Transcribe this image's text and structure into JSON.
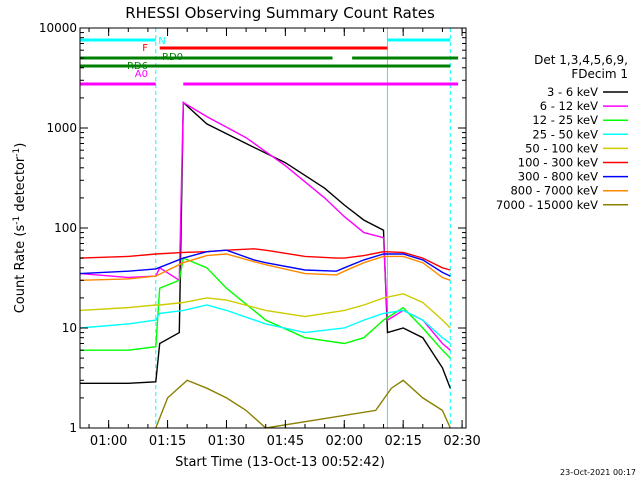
{
  "chart_data": {
    "type": "line",
    "title": "RHESSI Observing Summary Count Rates",
    "xlabel": "Start Time (13-Oct-13 00:52:42)",
    "ylabel": "Count Rate (s⁻¹ detector⁻¹)",
    "ylabel_main": "Count Rate (s",
    "ylabel_sup1": "-1",
    "ylabel_mid": " detector",
    "ylabel_sup2": "-1",
    "ylabel_end": ")",
    "y_scale": "log",
    "ylim": [
      1,
      10000
    ],
    "xlim": [
      "00:52:42",
      "02:31:00"
    ],
    "x_ticks": [
      "01:00",
      "01:15",
      "01:30",
      "01:45",
      "02:00",
      "02:15",
      "02:30"
    ],
    "y_ticks": [
      "1",
      "10",
      "100",
      "1000",
      "10000"
    ],
    "legend_header": [
      "Det 1,3,4,5,6,9,",
      "FDecim 1"
    ],
    "legend_position": "right",
    "timestamp": "23-Oct-2021 00:17",
    "series": [
      {
        "name": "3 - 6 keV",
        "color": "#000000",
        "points": [
          [
            "00:52:42",
            2.8
          ],
          [
            "01:05",
            2.8
          ],
          [
            "01:12",
            2.9
          ],
          [
            "01:13",
            7
          ],
          [
            "01:18",
            9
          ],
          [
            "01:19",
            1800
          ],
          [
            "01:25",
            1100
          ],
          [
            "01:35",
            700
          ],
          [
            "01:45",
            450
          ],
          [
            "01:55",
            250
          ],
          [
            "02:00",
            170
          ],
          [
            "02:05",
            120
          ],
          [
            "02:10",
            95
          ],
          [
            "02:11",
            9
          ],
          [
            "02:15",
            10
          ],
          [
            "02:20",
            8
          ],
          [
            "02:25",
            4
          ],
          [
            "02:27",
            2.5
          ]
        ]
      },
      {
        "name": "6 - 12 keV",
        "color": "#ff00ff",
        "points": [
          [
            "00:52:42",
            35
          ],
          [
            "01:05",
            32
          ],
          [
            "01:12",
            33
          ],
          [
            "01:13",
            40
          ],
          [
            "01:18",
            30
          ],
          [
            "01:19",
            1800
          ],
          [
            "01:25",
            1300
          ],
          [
            "01:35",
            800
          ],
          [
            "01:45",
            420
          ],
          [
            "01:55",
            200
          ],
          [
            "02:00",
            130
          ],
          [
            "02:05",
            90
          ],
          [
            "02:10",
            80
          ],
          [
            "02:11",
            12
          ],
          [
            "02:15",
            15
          ],
          [
            "02:20",
            12
          ],
          [
            "02:25",
            7
          ],
          [
            "02:27",
            6
          ]
        ]
      },
      {
        "name": "12 - 25 keV",
        "color": "#00ff00",
        "points": [
          [
            "00:52:42",
            6
          ],
          [
            "01:05",
            6
          ],
          [
            "01:12",
            6.5
          ],
          [
            "01:13",
            25
          ],
          [
            "01:18",
            30
          ],
          [
            "01:19",
            50
          ],
          [
            "01:25",
            40
          ],
          [
            "01:30",
            25
          ],
          [
            "01:40",
            12
          ],
          [
            "01:50",
            8
          ],
          [
            "02:00",
            7
          ],
          [
            "02:05",
            8
          ],
          [
            "02:10",
            12
          ],
          [
            "02:15",
            16
          ],
          [
            "02:20",
            10
          ],
          [
            "02:25",
            6
          ],
          [
            "02:27",
            5
          ]
        ]
      },
      {
        "name": "25 - 50 keV",
        "color": "#00ffff",
        "points": [
          [
            "00:52:42",
            10
          ],
          [
            "01:05",
            11
          ],
          [
            "01:12",
            12
          ],
          [
            "01:13",
            14
          ],
          [
            "01:19",
            15
          ],
          [
            "01:25",
            17
          ],
          [
            "01:30",
            15
          ],
          [
            "01:40",
            11
          ],
          [
            "01:50",
            9
          ],
          [
            "02:00",
            10
          ],
          [
            "02:05",
            12
          ],
          [
            "02:10",
            14
          ],
          [
            "02:15",
            15
          ],
          [
            "02:20",
            12
          ],
          [
            "02:25",
            8
          ],
          [
            "02:27",
            7
          ]
        ]
      },
      {
        "name": "50 - 100 keV",
        "color": "#cccc00",
        "points": [
          [
            "00:52:42",
            15
          ],
          [
            "01:05",
            16
          ],
          [
            "01:12",
            17
          ],
          [
            "01:13",
            17
          ],
          [
            "01:19",
            18
          ],
          [
            "01:25",
            20
          ],
          [
            "01:30",
            19
          ],
          [
            "01:40",
            15
          ],
          [
            "01:50",
            13
          ],
          [
            "02:00",
            15
          ],
          [
            "02:05",
            17
          ],
          [
            "02:10",
            20
          ],
          [
            "02:15",
            22
          ],
          [
            "02:20",
            18
          ],
          [
            "02:25",
            12
          ],
          [
            "02:27",
            10
          ]
        ]
      },
      {
        "name": "100 - 300 keV",
        "color": "#ff0000",
        "points": [
          [
            "00:52:42",
            50
          ],
          [
            "01:05",
            52
          ],
          [
            "01:12",
            55
          ],
          [
            "01:19",
            57
          ],
          [
            "01:25",
            58
          ],
          [
            "01:30",
            60
          ],
          [
            "01:37",
            62
          ],
          [
            "01:40",
            60
          ],
          [
            "01:50",
            52
          ],
          [
            "01:58",
            50
          ],
          [
            "02:00",
            50
          ],
          [
            "02:05",
            53
          ],
          [
            "02:10",
            58
          ],
          [
            "02:15",
            57
          ],
          [
            "02:20",
            50
          ],
          [
            "02:25",
            40
          ],
          [
            "02:27",
            38
          ]
        ]
      },
      {
        "name": "300 - 800 keV",
        "color": "#0000ff",
        "points": [
          [
            "00:52:42",
            35
          ],
          [
            "01:05",
            37
          ],
          [
            "01:12",
            39
          ],
          [
            "01:19",
            50
          ],
          [
            "01:25",
            58
          ],
          [
            "01:30",
            60
          ],
          [
            "01:37",
            48
          ],
          [
            "01:40",
            45
          ],
          [
            "01:50",
            38
          ],
          [
            "01:58",
            37
          ],
          [
            "02:00",
            40
          ],
          [
            "02:05",
            48
          ],
          [
            "02:10",
            55
          ],
          [
            "02:15",
            55
          ],
          [
            "02:20",
            48
          ],
          [
            "02:25",
            36
          ],
          [
            "02:27",
            33
          ]
        ]
      },
      {
        "name": "800 - 7000 keV",
        "color": "#ff8800",
        "points": [
          [
            "00:52:42",
            30
          ],
          [
            "01:05",
            31
          ],
          [
            "01:12",
            33
          ],
          [
            "01:19",
            45
          ],
          [
            "01:25",
            53
          ],
          [
            "01:30",
            55
          ],
          [
            "01:37",
            46
          ],
          [
            "01:40",
            43
          ],
          [
            "01:50",
            35
          ],
          [
            "01:58",
            34
          ],
          [
            "02:00",
            37
          ],
          [
            "02:05",
            45
          ],
          [
            "02:10",
            52
          ],
          [
            "02:15",
            52
          ],
          [
            "02:20",
            45
          ],
          [
            "02:25",
            32
          ],
          [
            "02:27",
            30
          ]
        ]
      },
      {
        "name": "7000 - 15000 keV",
        "color": "#8b8000",
        "points": [
          [
            "01:12",
            1
          ],
          [
            "01:15",
            2
          ],
          [
            "01:20",
            3
          ],
          [
            "01:25",
            2.5
          ],
          [
            "01:30",
            2
          ],
          [
            "01:35",
            1.5
          ],
          [
            "01:40",
            1
          ],
          [
            "02:08",
            1.5
          ],
          [
            "02:12",
            2.5
          ],
          [
            "02:15",
            3
          ],
          [
            "02:20",
            2
          ],
          [
            "02:25",
            1.5
          ],
          [
            "02:27",
            1
          ]
        ]
      }
    ],
    "flag_bars": [
      {
        "label": "N",
        "color": "#00ffff",
        "intervals": [
          [
            "00:52:42",
            "01:12"
          ],
          [
            "02:11",
            "02:27"
          ]
        ]
      },
      {
        "label": "F",
        "color": "#ff0000",
        "intervals": [
          [
            "01:13",
            "02:11"
          ]
        ]
      },
      {
        "label": "RD0",
        "color": "#008000",
        "intervals": [
          [
            "00:52:42",
            "01:40"
          ],
          [
            "01:37",
            "01:57"
          ],
          [
            "02:02",
            "02:29"
          ]
        ]
      },
      {
        "label": "RD6",
        "color": "#008000",
        "intervals": [
          [
            "00:52:42",
            "01:40"
          ],
          [
            "01:38",
            "02:27"
          ]
        ]
      },
      {
        "label": "A0",
        "color": "#ff00ff",
        "intervals": [
          [
            "00:52:42",
            "01:12"
          ],
          [
            "01:19",
            "02:29"
          ]
        ]
      }
    ],
    "vlines": [
      {
        "time": "00:52:42",
        "color": "#00ffff",
        "style": "solid"
      },
      {
        "time": "01:12",
        "color": "#00ffff",
        "style": "dashed"
      },
      {
        "time": "02:11",
        "color": "#00ffff",
        "style": "solid"
      },
      {
        "time": "02:27",
        "color": "#00ffff",
        "style": "dashed"
      }
    ]
  }
}
